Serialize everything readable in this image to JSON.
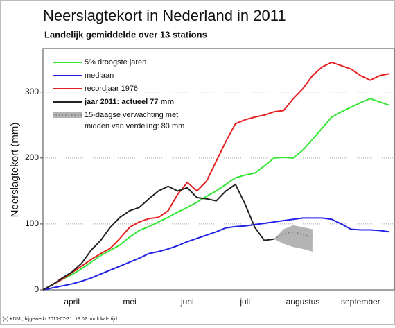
{
  "chart_data": {
    "type": "line",
    "title": "Neerslagtekort in Nederland in 2011",
    "subtitle": "Landelijk gemiddelde over 13 stations",
    "y_label": "Neerslagtekort (mm)",
    "footer": "(c) KNMI, bijgewerkt 2011-07-31, 19:02 uur lokale tijd",
    "categories": [
      null,
      null,
      null,
      "april",
      null,
      null,
      null,
      null,
      null,
      "mei",
      null,
      null,
      null,
      null,
      null,
      "juni",
      null,
      null,
      null,
      null,
      null,
      "juli",
      null,
      null,
      null,
      null,
      null,
      "augustus",
      null,
      null,
      null,
      null,
      null,
      "september",
      null,
      null,
      null
    ],
    "ylim": [
      0,
      366
    ],
    "yticks": [
      0,
      100,
      200,
      300
    ],
    "grid": true,
    "series": [
      {
        "name": "5% droogste jaren",
        "color": "#33e633",
        "values": [
          0,
          8,
          16,
          23,
          32,
          42,
          52,
          60,
          68,
          80,
          90,
          96,
          103,
          110,
          118,
          125,
          133,
          142,
          150,
          160,
          170,
          174,
          177,
          188,
          200,
          201,
          200,
          212,
          228,
          245,
          262,
          270,
          277,
          284,
          290,
          285,
          280
        ]
      },
      {
        "name": "mediaan",
        "color": "#2020e6",
        "values": [
          0,
          3,
          6,
          9,
          13,
          18,
          24,
          30,
          36,
          42,
          48,
          55,
          58,
          62,
          67,
          73,
          78,
          83,
          88,
          94,
          96,
          97,
          99,
          101,
          103,
          105,
          107,
          109,
          109,
          109,
          107,
          100,
          92,
          91,
          91,
          90,
          88
        ]
      },
      {
        "name": "recordjaar 1976",
        "color": "#e62020",
        "values": [
          0,
          8,
          16,
          26,
          36,
          46,
          55,
          63,
          78,
          95,
          103,
          108,
          110,
          120,
          145,
          163,
          150,
          165,
          195,
          225,
          252,
          258,
          262,
          265,
          270,
          272,
          290,
          305,
          325,
          338,
          345,
          340,
          335,
          325,
          318,
          325,
          328
        ]
      },
      {
        "name": "jaar 2011: actueel 77 mm",
        "color": "#222222",
        "bold": true,
        "values": [
          0,
          8,
          18,
          27,
          40,
          60,
          75,
          95,
          110,
          120,
          125,
          138,
          150,
          157,
          150,
          155,
          140,
          138,
          135,
          150,
          160,
          130,
          95,
          75,
          77,
          null,
          null,
          null,
          null,
          null,
          null,
          null,
          null,
          null,
          null,
          null,
          null
        ]
      },
      {
        "name": [
          "15-daagse verwachting met",
          "midden van verdeling: 80 mm"
        ],
        "color": "#777777",
        "band_color": "#b4b4b4",
        "dotted": true,
        "values": [
          null,
          null,
          null,
          null,
          null,
          null,
          null,
          null,
          null,
          null,
          null,
          null,
          null,
          null,
          null,
          null,
          null,
          null,
          null,
          null,
          null,
          null,
          null,
          null,
          77,
          85,
          88,
          84,
          80,
          null,
          null,
          null,
          null,
          null,
          null,
          null,
          null
        ],
        "low": [
          null,
          null,
          null,
          null,
          null,
          null,
          null,
          null,
          null,
          null,
          null,
          null,
          null,
          null,
          null,
          null,
          null,
          null,
          null,
          null,
          null,
          null,
          null,
          null,
          77,
          70,
          65,
          62,
          58,
          null,
          null,
          null,
          null,
          null,
          null,
          null,
          null
        ],
        "high": [
          null,
          null,
          null,
          null,
          null,
          null,
          null,
          null,
          null,
          null,
          null,
          null,
          null,
          null,
          null,
          null,
          null,
          null,
          null,
          null,
          null,
          null,
          null,
          null,
          77,
          92,
          98,
          95,
          92,
          null,
          null,
          null,
          null,
          null,
          null,
          null,
          null
        ]
      }
    ]
  }
}
